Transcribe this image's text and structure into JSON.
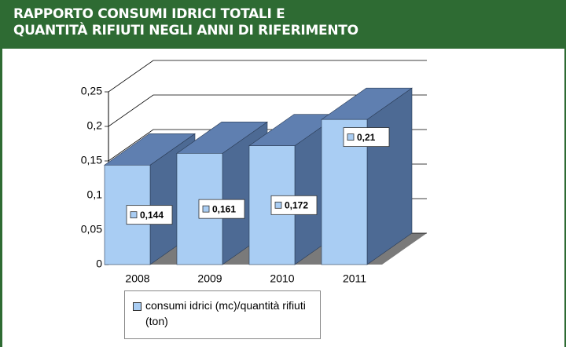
{
  "chart_data": {
    "type": "bar3d",
    "title": "RAPPORTO CONSUMI IDRICI TOTALI E\nQUANTITÀ RIFIUTI NEGLI ANNI DI RIFERIMENTO",
    "categories": [
      "2008",
      "2009",
      "2010",
      "2011"
    ],
    "series": [
      {
        "name": "consumi idrici (mc)/quantità rifiuti (ton)",
        "color": "#a9cdf3",
        "values": [
          0.144,
          0.161,
          0.172,
          0.21
        ],
        "value_labels": [
          "0,144",
          "0,161",
          "0,172",
          "0,21"
        ]
      }
    ],
    "ylim": [
      0,
      0.25
    ],
    "yticks": [
      0,
      {
        "value": 0.05,
        "label": "0,05"
      },
      {
        "value": 0.1,
        "label": "0,1"
      },
      {
        "value": 0.15,
        "label": "0,15"
      },
      {
        "value": 0.2,
        "label": "0,2"
      },
      {
        "value": 0.25,
        "label": "0,25"
      }
    ],
    "grid": true
  }
}
